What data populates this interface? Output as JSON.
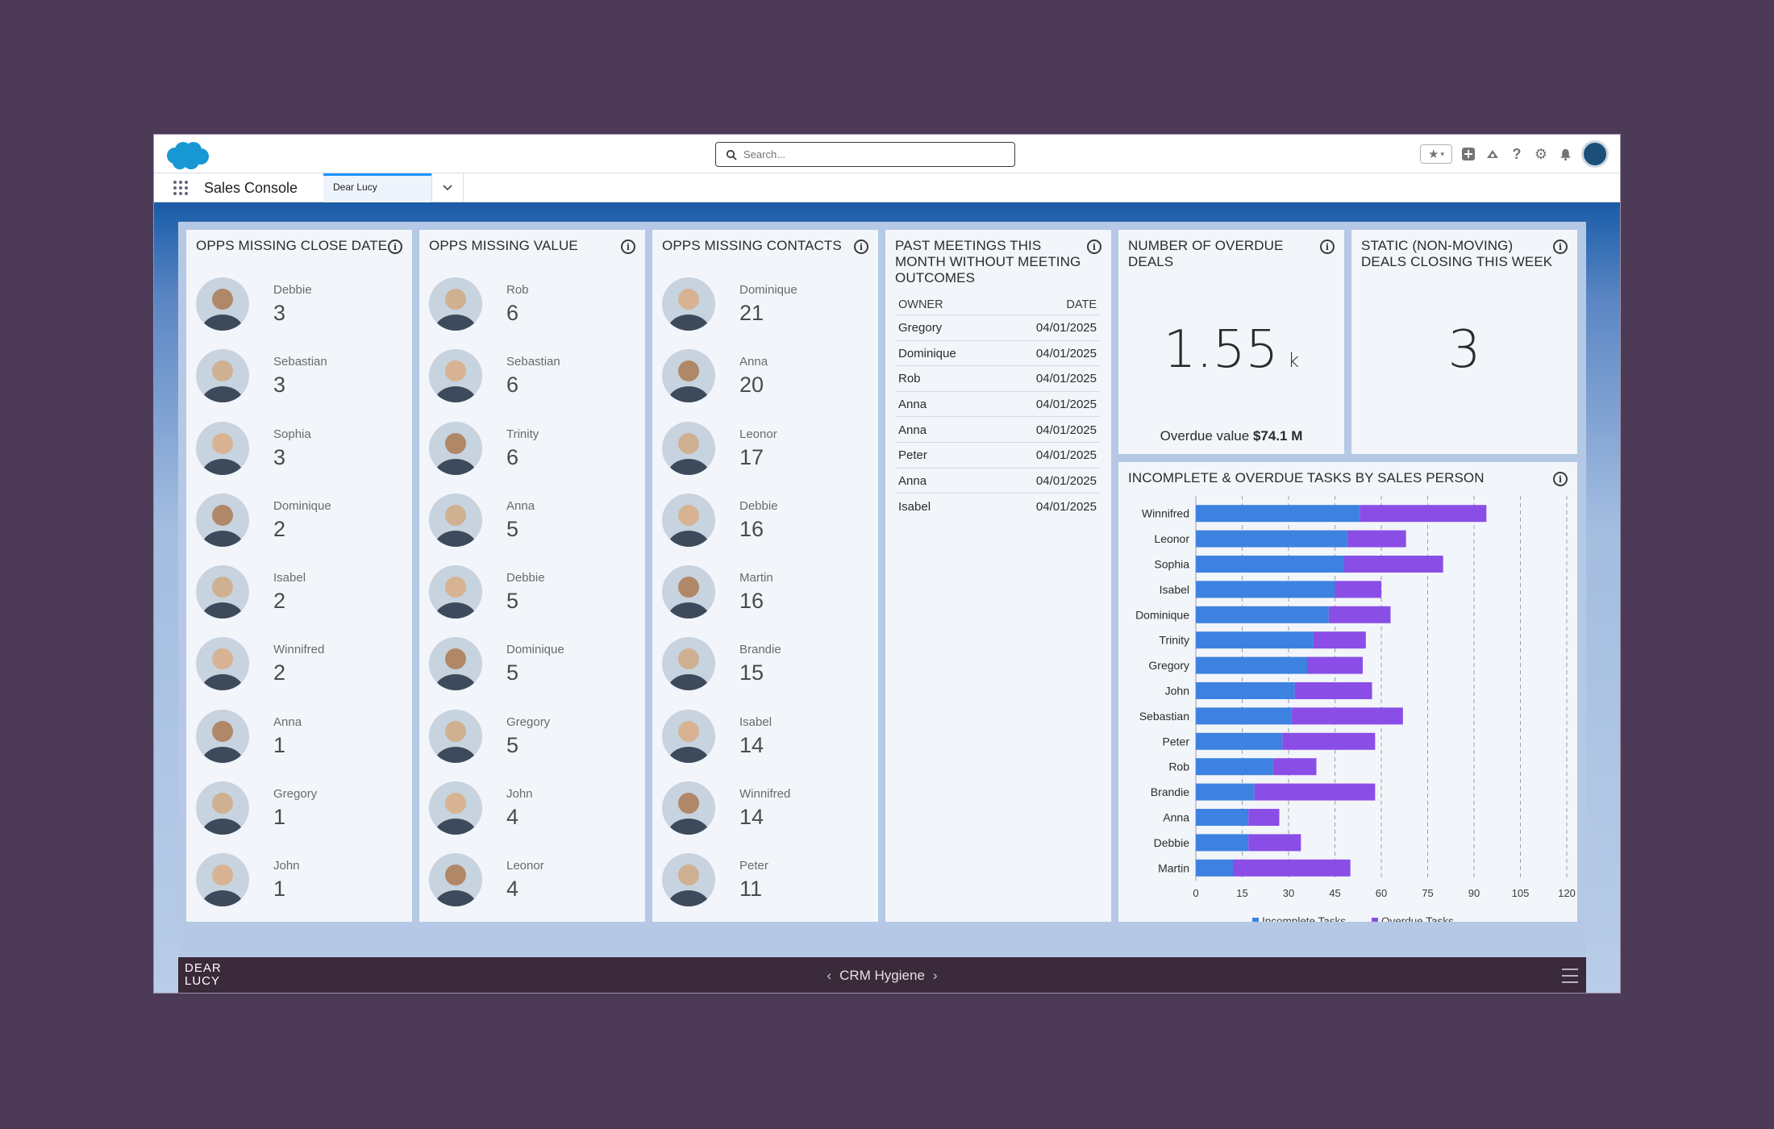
{
  "app": {
    "search_placeholder": "Search...",
    "app_name": "Sales Console",
    "active_tab": "Dear Lucy"
  },
  "cards": {
    "close_date": {
      "title": "OPPS MISSING CLOSE DATE",
      "people": [
        {
          "name": "Debbie",
          "value": "3"
        },
        {
          "name": "Sebastian",
          "value": "3"
        },
        {
          "name": "Sophia",
          "value": "3"
        },
        {
          "name": "Dominique",
          "value": "2"
        },
        {
          "name": "Isabel",
          "value": "2"
        },
        {
          "name": "Winnifred",
          "value": "2"
        },
        {
          "name": "Anna",
          "value": "1"
        },
        {
          "name": "Gregory",
          "value": "1"
        },
        {
          "name": "John",
          "value": "1"
        }
      ]
    },
    "missing_value": {
      "title": "OPPS MISSING VALUE",
      "people": [
        {
          "name": "Rob",
          "value": "6"
        },
        {
          "name": "Sebastian",
          "value": "6"
        },
        {
          "name": "Trinity",
          "value": "6"
        },
        {
          "name": "Anna",
          "value": "5"
        },
        {
          "name": "Debbie",
          "value": "5"
        },
        {
          "name": "Dominique",
          "value": "5"
        },
        {
          "name": "Gregory",
          "value": "5"
        },
        {
          "name": "John",
          "value": "4"
        },
        {
          "name": "Leonor",
          "value": "4"
        }
      ]
    },
    "missing_contacts": {
      "title": "OPPS MISSING CONTACTS",
      "people": [
        {
          "name": "Dominique",
          "value": "21"
        },
        {
          "name": "Anna",
          "value": "20"
        },
        {
          "name": "Leonor",
          "value": "17"
        },
        {
          "name": "Debbie",
          "value": "16"
        },
        {
          "name": "Martin",
          "value": "16"
        },
        {
          "name": "Brandie",
          "value": "15"
        },
        {
          "name": "Isabel",
          "value": "14"
        },
        {
          "name": "Winnifred",
          "value": "14"
        },
        {
          "name": "Peter",
          "value": "11"
        }
      ]
    },
    "meetings": {
      "title_lines": [
        "PAST MEETINGS THIS",
        "MONTH WITHOUT MEETING",
        "OUTCOMES"
      ],
      "col_owner": "OWNER",
      "col_date": "DATE",
      "rows": [
        {
          "owner": "Gregory",
          "date": "04/01/2025"
        },
        {
          "owner": "Dominique",
          "date": "04/01/2025"
        },
        {
          "owner": "Rob",
          "date": "04/01/2025"
        },
        {
          "owner": "Anna",
          "date": "04/01/2025"
        },
        {
          "owner": "Anna",
          "date": "04/01/2025"
        },
        {
          "owner": "Peter",
          "date": "04/01/2025"
        },
        {
          "owner": "Anna",
          "date": "04/01/2025"
        },
        {
          "owner": "Isabel",
          "date": "04/01/2025"
        }
      ]
    },
    "overdue_deals": {
      "title_lines": [
        "NUMBER OF OVERDUE",
        "DEALS"
      ],
      "value": "1.55",
      "unit": "k",
      "overdue_label": "Overdue value",
      "overdue_value": "$74.1 M"
    },
    "static_deals": {
      "title_lines": [
        "STATIC (NON-MOVING)",
        "DEALS CLOSING THIS WEEK"
      ],
      "value": "3"
    },
    "tasks": {
      "title": "INCOMPLETE & OVERDUE TASKS BY SALES PERSON"
    }
  },
  "footer": {
    "logo_line1": "DEAR",
    "logo_line2": "LUCY",
    "page_title": "CRM Hygiene",
    "prev_arrow": "‹",
    "next_arrow": "›"
  },
  "colors": {
    "incomplete": "#3d82e0",
    "overdue": "#8a4ee6"
  },
  "chart_data": {
    "type": "bar",
    "orientation": "horizontal",
    "stacked": true,
    "title": "INCOMPLETE & OVERDUE TASKS BY SALES PERSON",
    "categories": [
      "Winnifred",
      "Leonor",
      "Sophia",
      "Isabel",
      "Dominique",
      "Trinity",
      "Gregory",
      "John",
      "Sebastian",
      "Peter",
      "Rob",
      "Brandie",
      "Anna",
      "Debbie",
      "Martin"
    ],
    "series": [
      {
        "name": "Incomplete Tasks",
        "values": [
          53,
          49,
          48,
          45,
          43,
          38,
          36,
          32,
          31,
          28,
          25,
          19,
          17,
          17,
          12
        ]
      },
      {
        "name": "Overdue Tasks",
        "values": [
          41,
          19,
          32,
          15,
          20,
          17,
          18,
          25,
          36,
          30,
          14,
          39,
          10,
          17,
          38
        ]
      }
    ],
    "xlim": [
      0,
      120
    ],
    "xticks": [
      "0",
      "15",
      "30",
      "45",
      "60",
      "75",
      "90",
      "105",
      "120"
    ],
    "grid": true,
    "legend": "bottom"
  }
}
